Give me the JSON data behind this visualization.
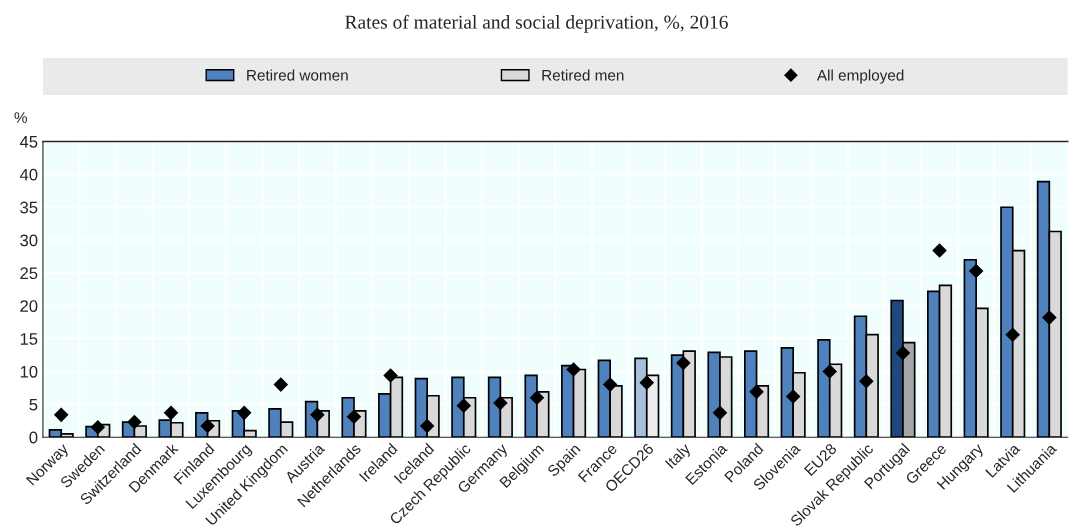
{
  "chart_data": {
    "type": "bar",
    "title": "Rates of material and social deprivation, %, 2016",
    "ylabel": "%",
    "categories": [
      "Norway",
      "Sweden",
      "Switzerland",
      "Denmark",
      "Finland",
      "Luxembourg",
      "United Kingdom",
      "Austria",
      "Netherlands",
      "Ireland",
      "Iceland",
      "Czech Republic",
      "Germany",
      "Belgium",
      "Spain",
      "France",
      "OECD26",
      "Italy",
      "Estonia",
      "Poland",
      "Slovenia",
      "EU28",
      "Slovak Republic",
      "Portugal",
      "Greece",
      "Hungary",
      "Latvia",
      "Lithuania"
    ],
    "series": [
      {
        "name": "Retired women",
        "color": "#4f81bd",
        "colors": [
          "#4f81bd",
          "#4f81bd",
          "#4f81bd",
          "#4f81bd",
          "#4f81bd",
          "#4f81bd",
          "#4f81bd",
          "#4f81bd",
          "#4f81bd",
          "#4f81bd",
          "#4f81bd",
          "#4f81bd",
          "#4f81bd",
          "#4f81bd",
          "#4f81bd",
          "#4f81bd",
          "#a7c0de",
          "#4f81bd",
          "#4f81bd",
          "#4f81bd",
          "#4f81bd",
          "#4f81bd",
          "#4f81bd",
          "#1f497d",
          "#4f81bd",
          "#4f81bd",
          "#4f81bd",
          "#4f81bd"
        ],
        "values": [
          1.1,
          1.6,
          2.3,
          2.6,
          3.7,
          4.0,
          4.3,
          5.4,
          6.0,
          6.6,
          8.9,
          9.1,
          9.1,
          9.4,
          10.9,
          11.7,
          12.0,
          12.5,
          12.9,
          13.1,
          13.6,
          14.8,
          18.4,
          20.8,
          22.2,
          27.0,
          35.0,
          38.9
        ]
      },
      {
        "name": "Retired men",
        "color": "#d9d9d9",
        "colors": [
          "#d9d9d9",
          "#d9d9d9",
          "#d9d9d9",
          "#d9d9d9",
          "#d9d9d9",
          "#d9d9d9",
          "#d9d9d9",
          "#d9d9d9",
          "#d9d9d9",
          "#d9d9d9",
          "#d9d9d9",
          "#d9d9d9",
          "#d9d9d9",
          "#d9d9d9",
          "#d9d9d9",
          "#d9d9d9",
          "#ececec",
          "#d9d9d9",
          "#d9d9d9",
          "#d9d9d9",
          "#d9d9d9",
          "#d9d9d9",
          "#d9d9d9",
          "#a6a6a6",
          "#d9d9d9",
          "#d9d9d9",
          "#d9d9d9",
          "#d9d9d9"
        ],
        "values": [
          0.5,
          1.9,
          1.7,
          2.2,
          2.5,
          1.0,
          2.3,
          4.0,
          4.0,
          9.1,
          6.3,
          6.0,
          6.0,
          6.9,
          10.3,
          7.8,
          9.4,
          13.1,
          12.2,
          7.8,
          9.8,
          11.1,
          15.6,
          14.4,
          23.1,
          19.6,
          28.4,
          31.3
        ]
      },
      {
        "name": "All employed",
        "type": "scatter",
        "marker": "diamond",
        "color": "#000000",
        "values": [
          3.4,
          1.5,
          2.3,
          3.7,
          1.7,
          3.7,
          8.0,
          3.4,
          3.1,
          9.4,
          1.7,
          4.8,
          5.2,
          6.0,
          10.3,
          8.0,
          8.3,
          11.3,
          3.7,
          6.9,
          6.2,
          10.0,
          8.5,
          12.8,
          28.4,
          25.3,
          15.6,
          18.2
        ]
      }
    ],
    "ylim": [
      0,
      45
    ],
    "yticks": [
      0,
      5,
      10,
      15,
      20,
      25,
      30,
      35,
      40,
      45
    ],
    "grid": true,
    "legend": "top"
  }
}
